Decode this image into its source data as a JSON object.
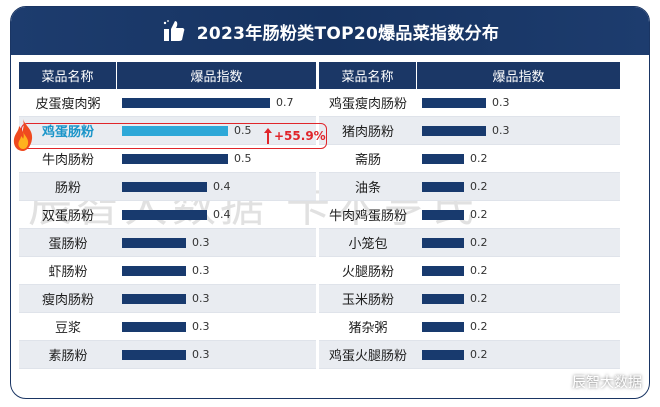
{
  "title": "2023年肠粉类TOP20爆品菜指数分布",
  "headers": {
    "name": "菜品名称",
    "value": "爆品指数"
  },
  "watermark": "辰智大数据 卡本亨氏",
  "brand": "辰智大数据",
  "highlight": {
    "item": "鸡蛋肠粉",
    "growth": "+55.9%"
  },
  "colors": {
    "bar": "#183a6e",
    "highlight_bar": "#2ea8d8",
    "header": "#1b3766",
    "accent": "#e0262b"
  },
  "chart_data": [
    {
      "type": "bar",
      "orientation": "horizontal",
      "categories": [
        "皮蛋瘦肉粥",
        "鸡蛋肠粉",
        "牛肉肠粉",
        "肠粉",
        "双蛋肠粉",
        "蛋肠粉",
        "虾肠粉",
        "瘦肉肠粉",
        "豆浆",
        "素肠粉"
      ],
      "values": [
        0.7,
        0.5,
        0.5,
        0.4,
        0.4,
        0.3,
        0.3,
        0.3,
        0.3,
        0.3
      ],
      "labels": [
        "0.7",
        "0.5",
        "0.5",
        "0.4",
        "0.4",
        "0.3",
        "0.3",
        "0.3",
        "0.3",
        "0.3"
      ]
    },
    {
      "type": "bar",
      "orientation": "horizontal",
      "categories": [
        "鸡蛋瘦肉肠粉",
        "猪肉肠粉",
        "斋肠",
        "油条",
        "牛肉鸡蛋肠粉",
        "小笼包",
        "火腿肠粉",
        "玉米肠粉",
        "猪杂粥",
        "鸡蛋火腿肠粉"
      ],
      "values": [
        0.3,
        0.3,
        0.2,
        0.2,
        0.2,
        0.2,
        0.2,
        0.2,
        0.2,
        0.2
      ],
      "labels": [
        "0.3",
        "0.3",
        "0.2",
        "0.2",
        "0.2",
        "0.2",
        "0.2",
        "0.2",
        "0.2",
        "0.2"
      ]
    }
  ]
}
